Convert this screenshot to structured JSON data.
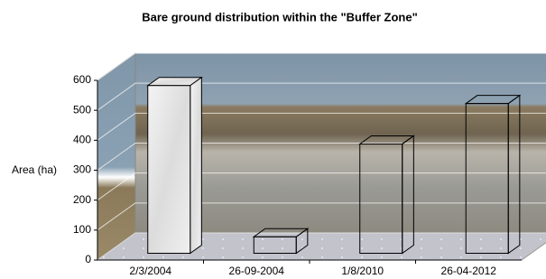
{
  "chart_data": {
    "type": "bar3d",
    "title": "Bare ground distribution within the \"Buffer Zone\"",
    "y_label": "Area (ha)",
    "categories": [
      "2/3/2004",
      "26-09-2004",
      "1/8/2010",
      "26-04-2012"
    ],
    "values": [
      560,
      55,
      365,
      500
    ],
    "ylim": [
      0,
      600
    ],
    "yticks": [
      0,
      100,
      200,
      300,
      400,
      500,
      600
    ],
    "grid": true
  }
}
